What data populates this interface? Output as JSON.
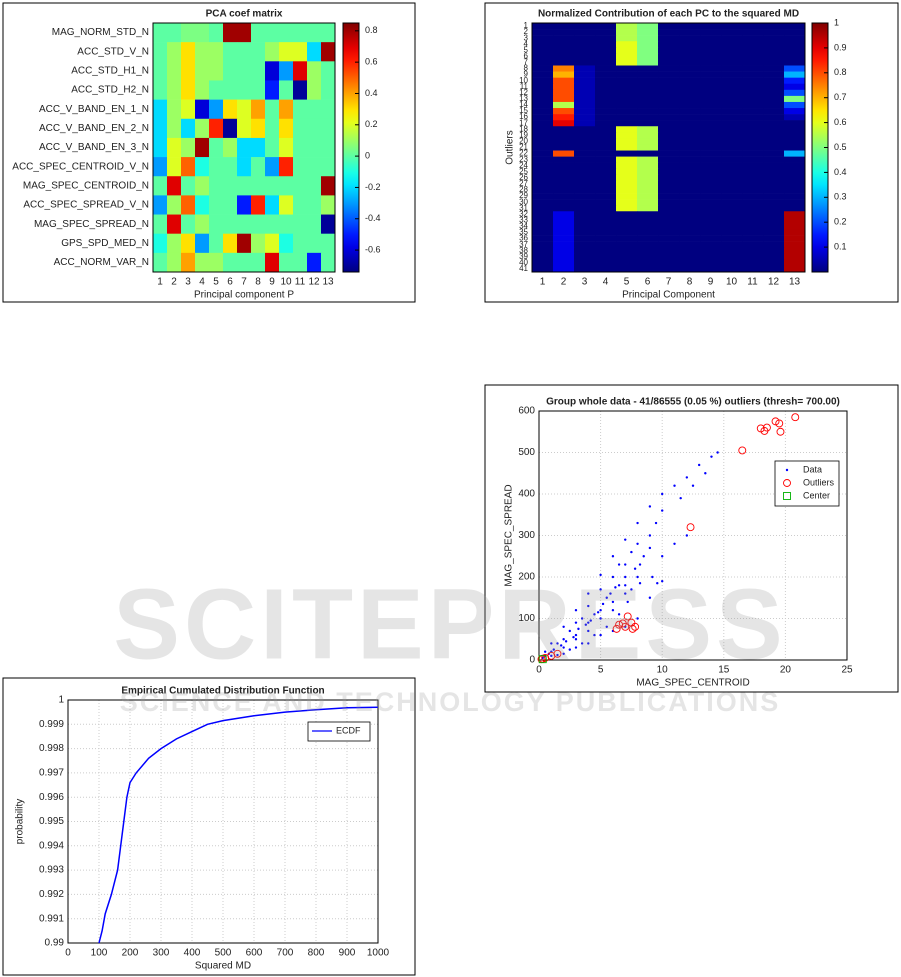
{
  "chart_data": [
    {
      "type": "heatmap",
      "title": "PCA coef matrix",
      "xlabel": "Principal component P",
      "categories": [
        1,
        2,
        3,
        4,
        5,
        6,
        7,
        8,
        9,
        10,
        11,
        12,
        13
      ],
      "rows": [
        "MAG_NORM_STD_N",
        "ACC_STD_V_N",
        "ACC_STD_H1_N",
        "ACC_STD_H2_N",
        "ACC_V_BAND_EN_1_N",
        "ACC_V_BAND_EN_2_N",
        "ACC_V_BAND_EN_3_N",
        "ACC_SPEC_CENTROID_V_N",
        "MAG_SPEC_CENTROID_N",
        "ACC_SPEC_SPREAD_V_N",
        "MAG_SPEC_SPREAD_N",
        "GPS_SPD_MED_N",
        "ACC_NORM_VAR_N"
      ],
      "values": [
        [
          0,
          0,
          0.05,
          0.05,
          0,
          0.8,
          0.8,
          0,
          0,
          0,
          0,
          0,
          0
        ],
        [
          0,
          0.1,
          0.3,
          0.1,
          0.1,
          0,
          0,
          0,
          0.1,
          0.2,
          0.2,
          -0.2,
          0.8
        ],
        [
          0,
          0.1,
          0.3,
          0.1,
          0.1,
          0,
          0,
          0,
          -0.6,
          -0.3,
          0.7,
          0.1,
          0
        ],
        [
          0,
          0.1,
          0.3,
          0.1,
          0,
          0,
          0,
          0,
          -0.5,
          0,
          -0.7,
          0.1,
          0
        ],
        [
          -0.2,
          0.1,
          0.2,
          -0.6,
          -0.3,
          0.3,
          0.2,
          0.4,
          0,
          0.4,
          0,
          0,
          0
        ],
        [
          -0.2,
          0.1,
          -0.2,
          0.1,
          0.6,
          -0.7,
          0.2,
          0.3,
          0,
          0.3,
          0,
          0,
          0
        ],
        [
          -0.2,
          0.2,
          0.1,
          0.8,
          0,
          0.1,
          -0.2,
          -0.2,
          0,
          0.2,
          0,
          0,
          0
        ],
        [
          -0.3,
          0.2,
          0.5,
          -0.1,
          0,
          0,
          -0.2,
          0,
          -0.3,
          0.6,
          0,
          0,
          0
        ],
        [
          0,
          0.7,
          0,
          0.1,
          0,
          0,
          0,
          0,
          0,
          0,
          0,
          0,
          0.8
        ],
        [
          -0.3,
          0.1,
          0.5,
          -0.1,
          0,
          0,
          -0.5,
          0.6,
          -0.2,
          0.2,
          0,
          0,
          0.1
        ],
        [
          0,
          0.7,
          0,
          0.1,
          0,
          0,
          0,
          0,
          0,
          0,
          0,
          0,
          -0.7
        ],
        [
          -0.1,
          0.1,
          0.3,
          -0.3,
          0,
          0.3,
          0.8,
          0.1,
          0.2,
          -0.1,
          0,
          0,
          0
        ],
        [
          0,
          0.1,
          0.4,
          0.1,
          0.1,
          0,
          0,
          0,
          0.7,
          0,
          0,
          -0.5,
          0
        ]
      ],
      "clim": [
        -0.74,
        0.85
      ],
      "cticks": [
        -0.6,
        -0.4,
        -0.2,
        0,
        0.2,
        0.4,
        0.6,
        0.8
      ]
    },
    {
      "type": "heatmap",
      "title": "Normalized Contribution of each PC to the squared MD",
      "xlabel": "Principal Component",
      "ylabel": "Outliers",
      "categories": [
        1,
        2,
        3,
        4,
        5,
        6,
        7,
        8,
        9,
        10,
        11,
        12,
        13
      ],
      "rows": [
        "1",
        "2",
        "3",
        "4",
        "5",
        "6",
        "7",
        "8",
        "9",
        "10",
        "11",
        "12",
        "13",
        "14",
        "15",
        "16",
        "17",
        "18",
        "19",
        "20",
        "21",
        "22",
        "23",
        "24",
        "25",
        "26",
        "27",
        "28",
        "29",
        "30",
        "31",
        "32",
        "33",
        "34",
        "35",
        "36",
        "37",
        "38",
        "39",
        "40",
        "41"
      ],
      "values": [
        [
          0,
          0,
          0,
          0,
          0.55,
          0.5,
          0,
          0,
          0,
          0,
          0,
          0,
          0
        ],
        [
          0,
          0,
          0,
          0,
          0.55,
          0.5,
          0,
          0,
          0,
          0,
          0,
          0,
          0
        ],
        [
          0,
          0,
          0,
          0,
          0.55,
          0.5,
          0,
          0,
          0,
          0,
          0,
          0,
          0
        ],
        [
          0,
          0,
          0,
          0,
          0.6,
          0.5,
          0,
          0,
          0,
          0,
          0,
          0,
          0
        ],
        [
          0,
          0,
          0,
          0,
          0.6,
          0.5,
          0,
          0,
          0,
          0,
          0,
          0,
          0
        ],
        [
          0,
          0,
          0,
          0,
          0.6,
          0.5,
          0,
          0,
          0,
          0,
          0,
          0,
          0
        ],
        [
          0,
          0,
          0,
          0,
          0.6,
          0.5,
          0,
          0,
          0,
          0,
          0,
          0,
          0
        ],
        [
          0,
          0.75,
          0.05,
          0,
          0,
          0,
          0,
          0,
          0,
          0,
          0,
          0,
          0.2
        ],
        [
          0,
          0.7,
          0.05,
          0,
          0,
          0,
          0,
          0,
          0,
          0,
          0,
          0,
          0.3
        ],
        [
          0,
          0.8,
          0.05,
          0,
          0,
          0,
          0,
          0,
          0,
          0,
          0,
          0,
          0.15
        ],
        [
          0,
          0.8,
          0.05,
          0,
          0,
          0,
          0,
          0,
          0,
          0,
          0,
          0,
          0.1
        ],
        [
          0,
          0.8,
          0.05,
          0,
          0,
          0,
          0,
          0,
          0,
          0,
          0,
          0,
          0.2
        ],
        [
          0,
          0.8,
          0.05,
          0,
          0,
          0,
          0,
          0,
          0,
          0,
          0,
          0,
          0.5
        ],
        [
          0,
          0.55,
          0.05,
          0,
          0,
          0,
          0,
          0,
          0,
          0,
          0,
          0,
          0.2
        ],
        [
          0,
          0.8,
          0.05,
          0,
          0,
          0,
          0,
          0,
          0,
          0,
          0,
          0,
          0.1
        ],
        [
          0,
          0.85,
          0.05,
          0,
          0,
          0,
          0,
          0,
          0,
          0,
          0,
          0,
          0.05
        ],
        [
          0,
          0.9,
          0.05,
          0,
          0,
          0,
          0,
          0,
          0,
          0,
          0,
          0,
          0
        ],
        [
          0,
          0,
          0,
          0,
          0.6,
          0.55,
          0,
          0,
          0,
          0,
          0,
          0,
          0
        ],
        [
          0,
          0,
          0,
          0,
          0.6,
          0.55,
          0,
          0,
          0,
          0,
          0,
          0,
          0
        ],
        [
          0,
          0,
          0,
          0,
          0.6,
          0.55,
          0,
          0,
          0,
          0,
          0,
          0,
          0
        ],
        [
          0,
          0,
          0,
          0,
          0.6,
          0.55,
          0,
          0,
          0,
          0,
          0,
          0,
          0
        ],
        [
          0,
          0.8,
          0,
          0,
          0,
          0,
          0,
          0,
          0,
          0,
          0,
          0,
          0.3
        ],
        [
          0,
          0,
          0,
          0,
          0.6,
          0.55,
          0,
          0,
          0,
          0,
          0,
          0,
          0
        ],
        [
          0,
          0,
          0,
          0,
          0.6,
          0.55,
          0,
          0,
          0,
          0,
          0,
          0,
          0
        ],
        [
          0,
          0,
          0,
          0,
          0.6,
          0.55,
          0,
          0,
          0,
          0,
          0,
          0,
          0
        ],
        [
          0,
          0,
          0,
          0,
          0.6,
          0.55,
          0,
          0,
          0,
          0,
          0,
          0,
          0
        ],
        [
          0,
          0,
          0,
          0,
          0.6,
          0.55,
          0,
          0,
          0,
          0,
          0,
          0,
          0
        ],
        [
          0,
          0,
          0,
          0,
          0.6,
          0.55,
          0,
          0,
          0,
          0,
          0,
          0,
          0
        ],
        [
          0,
          0,
          0,
          0,
          0.6,
          0.55,
          0,
          0,
          0,
          0,
          0,
          0,
          0
        ],
        [
          0,
          0,
          0,
          0,
          0.6,
          0.55,
          0,
          0,
          0,
          0,
          0,
          0,
          0
        ],
        [
          0,
          0,
          0,
          0,
          0.6,
          0.55,
          0,
          0,
          0,
          0,
          0,
          0,
          0
        ],
        [
          0,
          0.1,
          0,
          0,
          0,
          0,
          0,
          0,
          0,
          0,
          0,
          0,
          0.95
        ],
        [
          0,
          0.1,
          0,
          0,
          0,
          0,
          0,
          0,
          0,
          0,
          0,
          0,
          0.95
        ],
        [
          0,
          0.1,
          0,
          0,
          0,
          0,
          0,
          0,
          0,
          0,
          0,
          0,
          0.95
        ],
        [
          0,
          0.1,
          0,
          0,
          0,
          0,
          0,
          0,
          0,
          0,
          0,
          0,
          0.95
        ],
        [
          0,
          0.1,
          0,
          0,
          0,
          0,
          0,
          0,
          0,
          0,
          0,
          0,
          0.95
        ],
        [
          0,
          0.1,
          0,
          0,
          0,
          0,
          0,
          0,
          0,
          0,
          0,
          0,
          0.95
        ],
        [
          0,
          0.1,
          0,
          0,
          0,
          0,
          0,
          0,
          0,
          0,
          0,
          0,
          0.95
        ],
        [
          0,
          0.1,
          0,
          0,
          0,
          0,
          0,
          0,
          0,
          0,
          0,
          0,
          0.95
        ],
        [
          0,
          0.1,
          0,
          0,
          0,
          0,
          0,
          0,
          0,
          0,
          0,
          0,
          0.95
        ],
        [
          0,
          0.1,
          0,
          0,
          0,
          0,
          0,
          0,
          0,
          0,
          0,
          0,
          0.95
        ]
      ],
      "clim": [
        0,
        1
      ],
      "cticks": [
        0.1,
        0.2,
        0.3,
        0.4,
        0.5,
        0.6,
        0.7,
        0.8,
        0.9,
        1
      ]
    },
    {
      "type": "scatter",
      "title": "Group whole data - 41/86555 (0.05 %) outliers (thresh= 700.00)",
      "xlabel": "MAG_SPEC_CENTROID",
      "ylabel": "MAG_SPEC_SPREAD",
      "xlim": [
        0,
        25
      ],
      "xticks": [
        0,
        5,
        10,
        15,
        20,
        25
      ],
      "ylim": [
        0,
        600
      ],
      "yticks": [
        0,
        100,
        200,
        300,
        400,
        500,
        600
      ],
      "grid": true,
      "legend": "upper right",
      "series": [
        {
          "name": "Data",
          "color": "#0000ff",
          "marker": "dot",
          "x": [
            1,
            2,
            3,
            4,
            5,
            6,
            7,
            8,
            9,
            10,
            11,
            12,
            13,
            14,
            14.5,
            1,
            1.5,
            2,
            2.5,
            3,
            3,
            3.5,
            4,
            4,
            4.5,
            5,
            5,
            5.5,
            6,
            6,
            6.5,
            7,
            7,
            7.5,
            8,
            8,
            8.5,
            9,
            9.5,
            10,
            11,
            12,
            6.5,
            5,
            4,
            3,
            2,
            1,
            0.5,
            0.5,
            0.3,
            0.8,
            1.2,
            1.8,
            2.2,
            2.8,
            3.2,
            3.8,
            4.2,
            4.8,
            5.2,
            5.8,
            6.2,
            7,
            7.8,
            8.2,
            9,
            10,
            11.5,
            12.5,
            13.5,
            9.2,
            8.2,
            7,
            6,
            6.5,
            7.2,
            7.5,
            5.5,
            4.5,
            3.5,
            2.5,
            1.5,
            2,
            3,
            4,
            5,
            6,
            7,
            8,
            9,
            9.6,
            10
          ],
          "y": [
            40,
            80,
            120,
            160,
            205,
            250,
            290,
            330,
            370,
            400,
            420,
            440,
            470,
            490,
            500,
            20,
            40,
            50,
            70,
            60,
            90,
            100,
            90,
            130,
            110,
            120,
            170,
            150,
            140,
            200,
            180,
            160,
            230,
            260,
            200,
            280,
            250,
            300,
            330,
            250,
            280,
            300,
            230,
            100,
            70,
            50,
            30,
            10,
            10,
            20,
            5,
            15,
            25,
            35,
            45,
            55,
            75,
            85,
            95,
            115,
            135,
            160,
            175,
            200,
            220,
            230,
            270,
            360,
            390,
            420,
            450,
            200,
            185,
            180,
            120,
            110,
            140,
            170,
            80,
            60,
            40,
            25,
            12,
            15,
            30,
            40,
            60,
            70,
            80,
            100,
            150,
            185,
            190
          ]
        },
        {
          "name": "Outliers",
          "color": "#ff0000",
          "marker": "circle",
          "x": [
            20.8,
            19.2,
            19.5,
            18.5,
            18,
            18.3,
            19.6,
            16.5,
            12.3,
            7.2,
            7.5,
            7.8,
            6.8,
            6.5,
            7,
            6.3,
            7.6,
            1.5,
            1,
            0.5,
            0.3,
            0.2
          ],
          "y": [
            585,
            575,
            570,
            560,
            558,
            552,
            550,
            505,
            320,
            105,
            90,
            80,
            88,
            85,
            80,
            75,
            75,
            15,
            10,
            5,
            3,
            2
          ]
        },
        {
          "name": "Center",
          "color": "#00b000",
          "marker": "square",
          "x": [
            0.3
          ],
          "y": [
            2
          ]
        }
      ]
    },
    {
      "type": "line",
      "title": "Empirical Cumulated Distribution Function",
      "xlabel": "Squared MD",
      "ylabel": "probability",
      "xlim": [
        0,
        1000
      ],
      "xticks": [
        0,
        100,
        200,
        300,
        400,
        500,
        600,
        700,
        800,
        900,
        1000
      ],
      "ylim": [
        0.99,
        1
      ],
      "yticks": [
        0.99,
        0.991,
        0.992,
        0.993,
        0.994,
        0.995,
        0.996,
        0.997,
        0.998,
        0.999,
        1
      ],
      "grid": true,
      "legend": "upper right",
      "x": [
        100,
        110,
        120,
        140,
        160,
        170,
        180,
        190,
        200,
        220,
        260,
        300,
        350,
        400,
        450,
        500,
        600,
        700,
        800,
        900,
        1000
      ],
      "series": [
        {
          "name": "ECDF",
          "color": "#0000ff",
          "values": [
            0.99,
            0.9905,
            0.9912,
            0.992,
            0.993,
            0.994,
            0.995,
            0.996,
            0.9966,
            0.997,
            0.9976,
            0.998,
            0.9984,
            0.9987,
            0.999,
            0.99915,
            0.99935,
            0.9995,
            0.9996,
            0.99968,
            0.9997
          ]
        }
      ]
    }
  ],
  "watermark": [
    "SCITEPRESS",
    "SCIENCE AND TECHNOLOGY PUBLICATIONS"
  ]
}
